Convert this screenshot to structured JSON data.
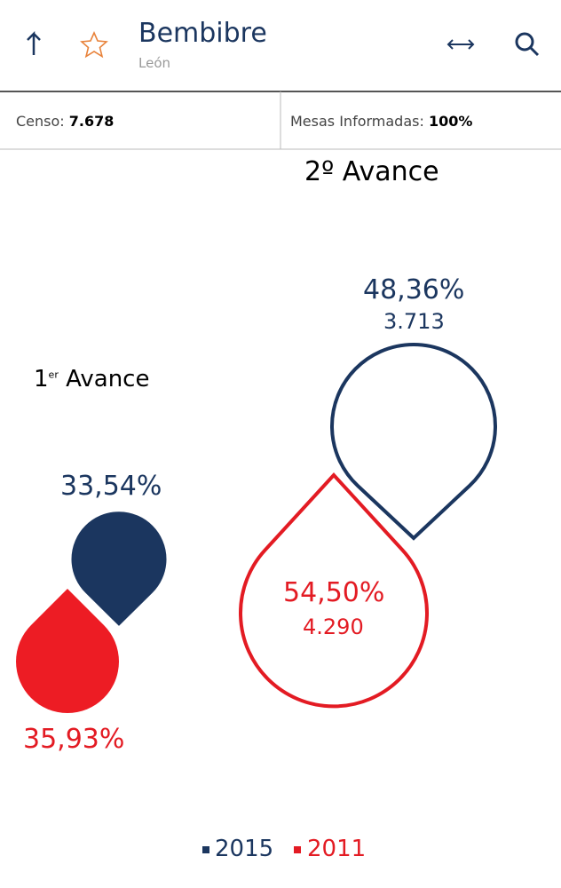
{
  "header": {
    "title": "Bembibre",
    "subtitle": "León"
  },
  "stats": {
    "censo_label": "Censo:",
    "censo_value": "7.678",
    "mesas_label": "Mesas Informadas:",
    "mesas_value": "100%"
  },
  "avance1": {
    "number": "1",
    "suffix": "er",
    "label": "Avance",
    "pct_2015": "33,54%",
    "pct_2011": "35,93%"
  },
  "avance2": {
    "title": "2º Avance",
    "pct_2015": "48,36%",
    "votes_2015": "3.713",
    "pct_2011": "54,50%",
    "votes_2011": "4.290"
  },
  "legend": [
    "2015",
    "2011"
  ]
}
